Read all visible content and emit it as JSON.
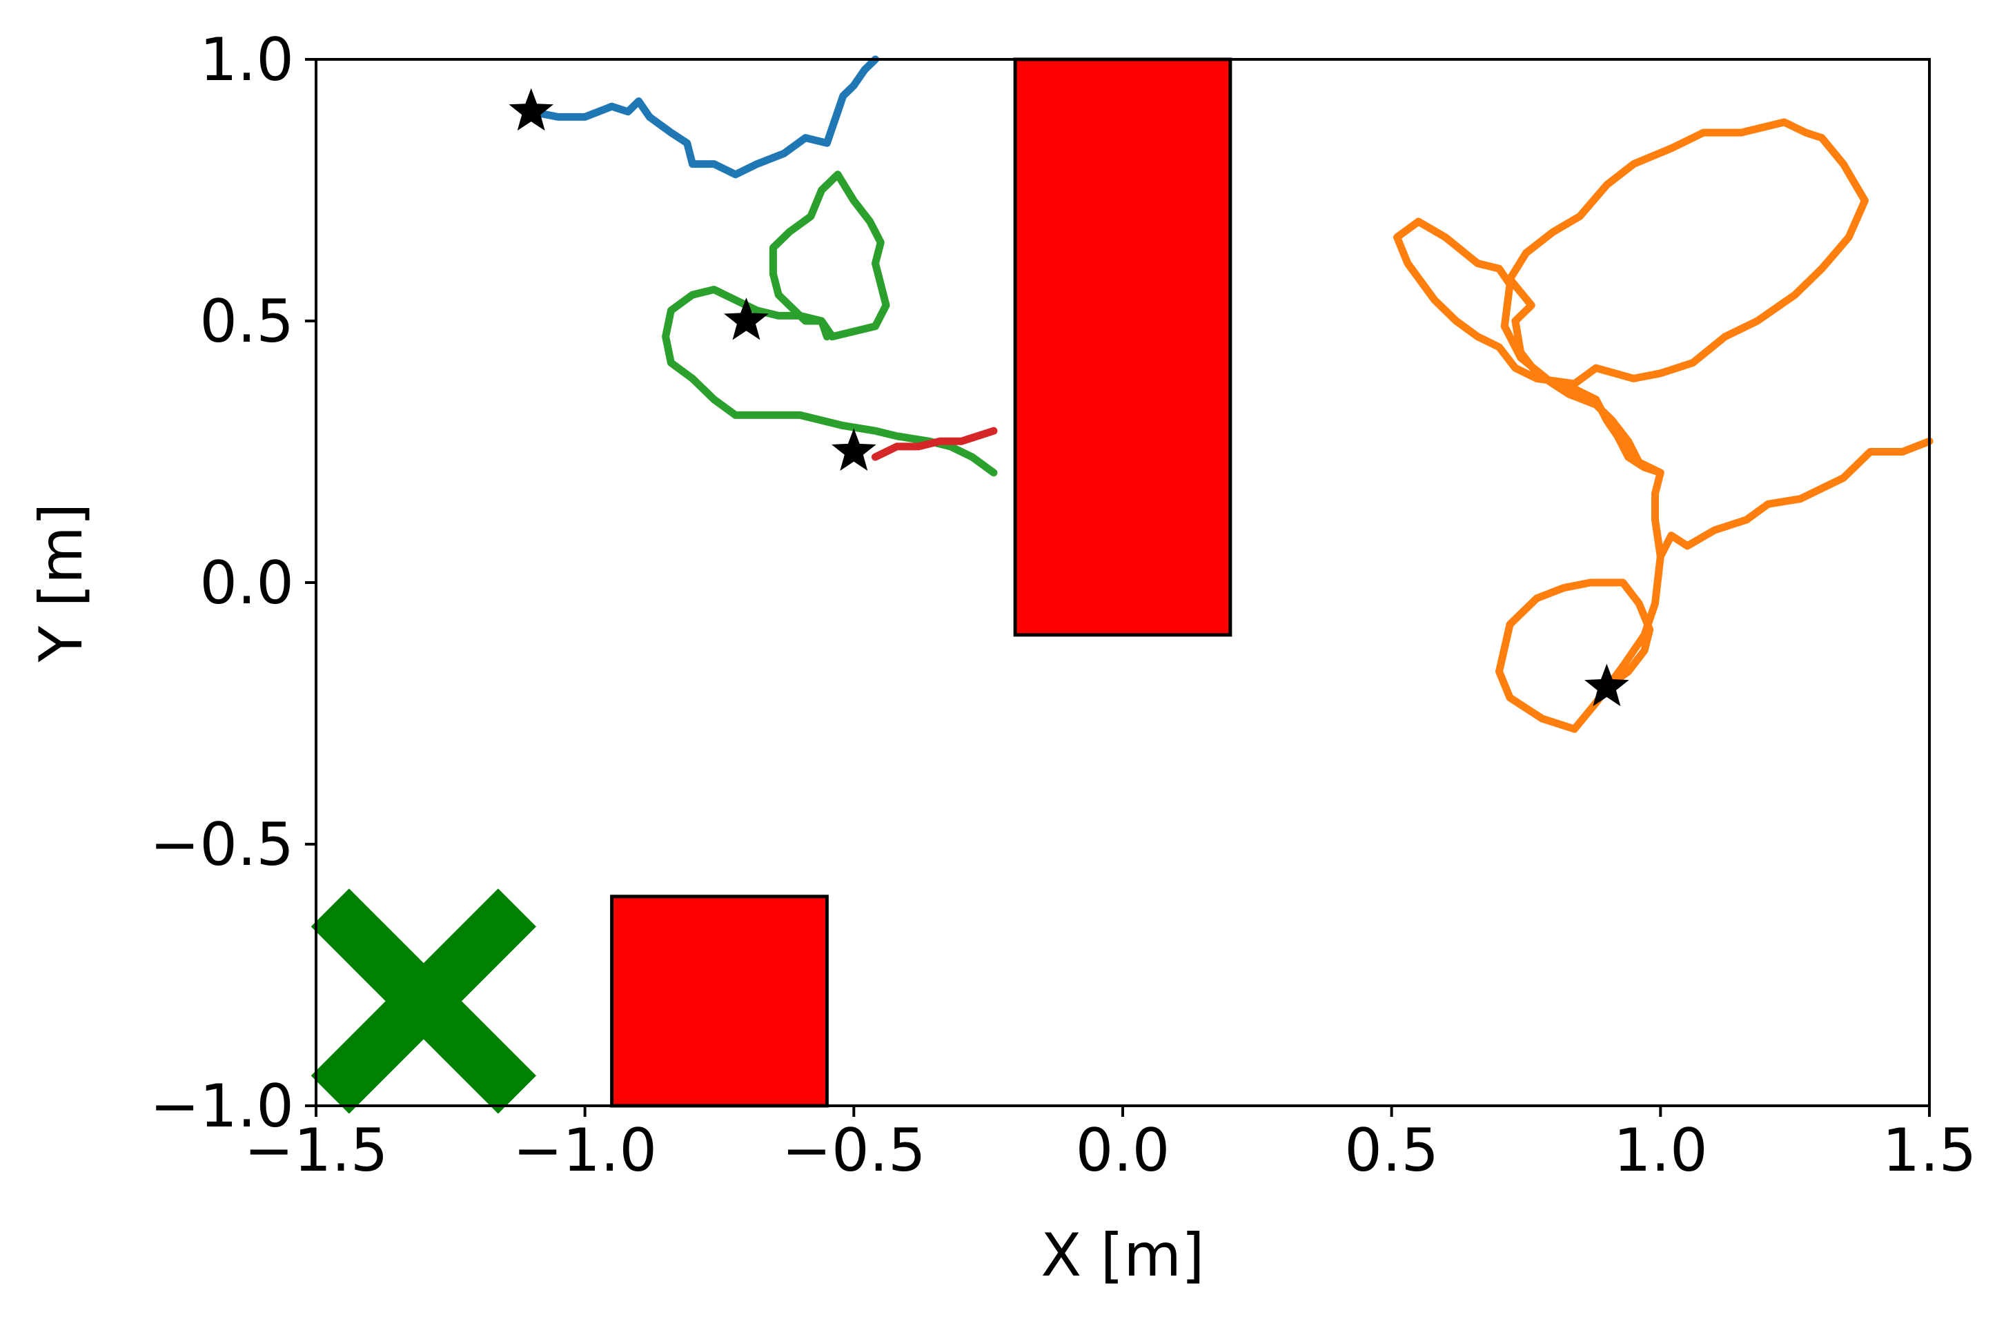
{
  "chart_data": {
    "type": "scatter",
    "xlabel": "X [m]",
    "ylabel": "Y [m]",
    "xlim": [
      -1.5,
      1.5
    ],
    "ylim": [
      -1.0,
      1.0
    ],
    "xticks": [
      -1.5,
      -1.0,
      -0.5,
      0.0,
      0.5,
      1.0,
      1.5
    ],
    "yticks": [
      -1.0,
      -0.5,
      0.0,
      0.5,
      1.0
    ],
    "xtick_labels": [
      "−1.5",
      "−1.0",
      "−0.5",
      "0.0",
      "0.5",
      "1.0",
      "1.5"
    ],
    "ytick_labels": [
      "−1.0",
      "−0.5",
      "0.0",
      "0.5",
      "1.0"
    ],
    "grid": false,
    "obstacles": [
      {
        "x_min": -0.2,
        "x_max": 0.2,
        "y_min": -0.1,
        "y_max": 1.0,
        "color": "#ff0000"
      },
      {
        "x_min": -0.95,
        "x_max": -0.55,
        "y_min": -1.0,
        "y_max": -0.6,
        "color": "#ff0000"
      }
    ],
    "goal_marker": {
      "x": -1.3,
      "y": -0.8,
      "shape": "X",
      "color": "#008000"
    },
    "start_points": [
      {
        "x": -1.1,
        "y": 0.9
      },
      {
        "x": -0.7,
        "y": 0.5
      },
      {
        "x": -0.5,
        "y": 0.25
      },
      {
        "x": 0.9,
        "y": -0.2
      }
    ],
    "series": [
      {
        "color": "#1f77b4",
        "points": [
          [
            -1.1,
            0.9
          ],
          [
            -1.05,
            0.89
          ],
          [
            -1.0,
            0.89
          ],
          [
            -0.95,
            0.91
          ],
          [
            -0.92,
            0.9
          ],
          [
            -0.9,
            0.92
          ],
          [
            -0.88,
            0.89
          ],
          [
            -0.84,
            0.86
          ],
          [
            -0.81,
            0.84
          ],
          [
            -0.8,
            0.8
          ],
          [
            -0.76,
            0.8
          ],
          [
            -0.72,
            0.78
          ],
          [
            -0.68,
            0.8
          ],
          [
            -0.63,
            0.82
          ],
          [
            -0.59,
            0.85
          ],
          [
            -0.55,
            0.84
          ],
          [
            -0.54,
            0.87
          ],
          [
            -0.53,
            0.9
          ],
          [
            -0.52,
            0.93
          ],
          [
            -0.5,
            0.95
          ],
          [
            -0.48,
            0.98
          ],
          [
            -0.46,
            1.0
          ]
        ]
      },
      {
        "color": "#ff7f0e",
        "points": [
          [
            0.9,
            -0.2
          ],
          [
            0.94,
            -0.17
          ],
          [
            0.97,
            -0.13
          ],
          [
            0.98,
            -0.09
          ],
          [
            0.96,
            -0.04
          ],
          [
            0.93,
            0.0
          ],
          [
            0.87,
            0.0
          ],
          [
            0.82,
            -0.01
          ],
          [
            0.77,
            -0.03
          ],
          [
            0.72,
            -0.08
          ],
          [
            0.7,
            -0.17
          ],
          [
            0.72,
            -0.22
          ],
          [
            0.78,
            -0.26
          ],
          [
            0.84,
            -0.28
          ],
          [
            0.88,
            -0.23
          ],
          [
            0.93,
            -0.16
          ],
          [
            0.97,
            -0.1
          ],
          [
            0.99,
            -0.04
          ],
          [
            1.0,
            0.05
          ],
          [
            1.02,
            0.09
          ],
          [
            1.05,
            0.07
          ],
          [
            1.1,
            0.1
          ],
          [
            1.16,
            0.12
          ],
          [
            1.2,
            0.15
          ],
          [
            1.26,
            0.16
          ],
          [
            1.34,
            0.2
          ],
          [
            1.39,
            0.25
          ],
          [
            1.45,
            0.25
          ],
          [
            1.5,
            0.27
          ]
        ]
      },
      {
        "color": "#ff7f0e",
        "points": [
          [
            1.0,
            0.05
          ],
          [
            0.99,
            0.12
          ],
          [
            0.99,
            0.17
          ],
          [
            1.0,
            0.21
          ],
          [
            0.96,
            0.23
          ],
          [
            0.94,
            0.27
          ],
          [
            0.91,
            0.31
          ],
          [
            0.88,
            0.34
          ],
          [
            0.83,
            0.36
          ],
          [
            0.77,
            0.4
          ],
          [
            0.74,
            0.44
          ],
          [
            0.73,
            0.5
          ],
          [
            0.76,
            0.53
          ],
          [
            0.72,
            0.58
          ],
          [
            0.75,
            0.63
          ],
          [
            0.8,
            0.67
          ],
          [
            0.85,
            0.7
          ],
          [
            0.9,
            0.76
          ],
          [
            0.95,
            0.8
          ],
          [
            1.02,
            0.83
          ],
          [
            1.08,
            0.86
          ],
          [
            1.15,
            0.86
          ],
          [
            1.23,
            0.88
          ],
          [
            1.27,
            0.86
          ],
          [
            1.3,
            0.85
          ],
          [
            1.34,
            0.8
          ],
          [
            1.38,
            0.73
          ],
          [
            1.35,
            0.66
          ],
          [
            1.3,
            0.6
          ],
          [
            1.25,
            0.55
          ],
          [
            1.18,
            0.5
          ],
          [
            1.12,
            0.47
          ],
          [
            1.06,
            0.42
          ],
          [
            1.0,
            0.4
          ],
          [
            0.95,
            0.39
          ],
          [
            0.88,
            0.41
          ],
          [
            0.84,
            0.38
          ],
          [
            0.77,
            0.39
          ],
          [
            0.73,
            0.41
          ],
          [
            0.7,
            0.45
          ],
          [
            0.66,
            0.47
          ],
          [
            0.62,
            0.5
          ],
          [
            0.58,
            0.54
          ],
          [
            0.53,
            0.61
          ],
          [
            0.51,
            0.66
          ],
          [
            0.55,
            0.69
          ],
          [
            0.6,
            0.66
          ],
          [
            0.66,
            0.61
          ],
          [
            0.7,
            0.6
          ],
          [
            0.72,
            0.57
          ],
          [
            0.71,
            0.49
          ],
          [
            0.74,
            0.43
          ],
          [
            0.8,
            0.38
          ],
          [
            0.84,
            0.37
          ],
          [
            0.88,
            0.35
          ],
          [
            0.9,
            0.31
          ],
          [
            0.92,
            0.28
          ],
          [
            0.94,
            0.24
          ],
          [
            0.97,
            0.22
          ],
          [
            1.0,
            0.21
          ]
        ]
      },
      {
        "color": "#2ca02c",
        "points": [
          [
            -0.24,
            0.21
          ],
          [
            -0.28,
            0.24
          ],
          [
            -0.32,
            0.26
          ],
          [
            -0.36,
            0.27
          ],
          [
            -0.42,
            0.28
          ],
          [
            -0.46,
            0.29
          ],
          [
            -0.52,
            0.3
          ],
          [
            -0.56,
            0.31
          ],
          [
            -0.6,
            0.32
          ],
          [
            -0.64,
            0.32
          ],
          [
            -0.68,
            0.32
          ],
          [
            -0.72,
            0.32
          ],
          [
            -0.76,
            0.35
          ],
          [
            -0.8,
            0.39
          ],
          [
            -0.84,
            0.42
          ],
          [
            -0.85,
            0.47
          ],
          [
            -0.84,
            0.52
          ],
          [
            -0.8,
            0.55
          ],
          [
            -0.76,
            0.56
          ],
          [
            -0.72,
            0.54
          ],
          [
            -0.68,
            0.52
          ],
          [
            -0.64,
            0.51
          ],
          [
            -0.6,
            0.51
          ],
          [
            -0.56,
            0.5
          ],
          [
            -0.54,
            0.47
          ],
          [
            -0.5,
            0.48
          ],
          [
            -0.46,
            0.49
          ],
          [
            -0.44,
            0.53
          ],
          [
            -0.45,
            0.57
          ],
          [
            -0.46,
            0.61
          ],
          [
            -0.45,
            0.65
          ],
          [
            -0.47,
            0.69
          ],
          [
            -0.5,
            0.73
          ],
          [
            -0.53,
            0.78
          ],
          [
            -0.56,
            0.75
          ],
          [
            -0.58,
            0.7
          ],
          [
            -0.62,
            0.67
          ],
          [
            -0.65,
            0.64
          ],
          [
            -0.65,
            0.59
          ],
          [
            -0.64,
            0.55
          ],
          [
            -0.62,
            0.53
          ],
          [
            -0.59,
            0.5
          ],
          [
            -0.56,
            0.5
          ],
          [
            -0.55,
            0.47
          ]
        ]
      },
      {
        "color": "#d62728",
        "points": [
          [
            -0.46,
            0.24
          ],
          [
            -0.42,
            0.26
          ],
          [
            -0.38,
            0.26
          ],
          [
            -0.34,
            0.27
          ],
          [
            -0.3,
            0.27
          ],
          [
            -0.27,
            0.28
          ],
          [
            -0.24,
            0.29
          ]
        ]
      }
    ]
  }
}
